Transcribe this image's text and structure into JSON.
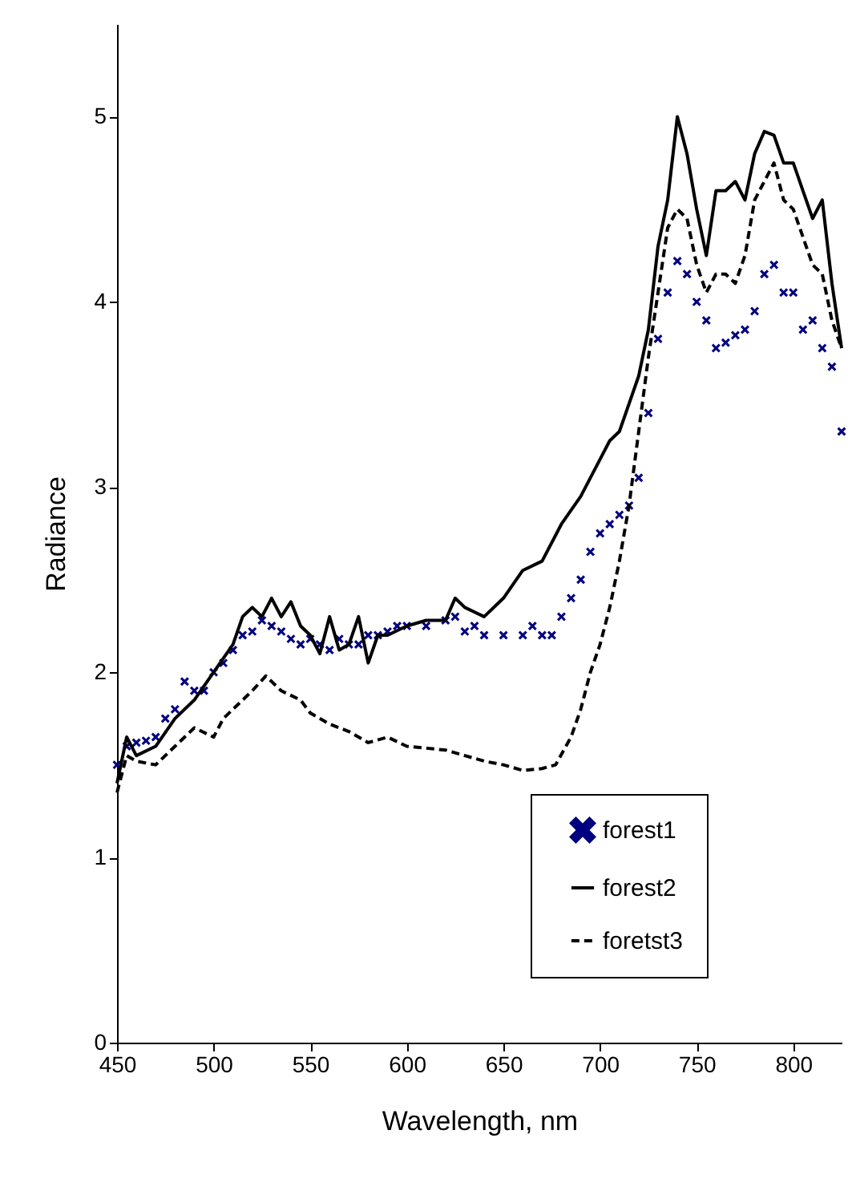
{
  "chart_data": {
    "type": "line",
    "xlabel": "Wavelength, nm",
    "ylabel": "Radiance",
    "xlim": [
      450,
      825
    ],
    "ylim": [
      0,
      5.5
    ],
    "xticks": [
      450,
      500,
      550,
      600,
      650,
      700,
      750,
      800
    ],
    "yticks": [
      0,
      1,
      2,
      3,
      4,
      5
    ],
    "grid": false,
    "legend": "bottom right",
    "series": [
      {
        "name": "forest1",
        "type": "scatter",
        "marker": "cross",
        "color": "#000080",
        "x": [
          450,
          455,
          460,
          465,
          470,
          475,
          480,
          485,
          490,
          495,
          500,
          505,
          510,
          515,
          520,
          525,
          530,
          535,
          540,
          545,
          550,
          555,
          560,
          565,
          570,
          575,
          580,
          585,
          590,
          595,
          600,
          610,
          620,
          625,
          630,
          635,
          640,
          650,
          660,
          665,
          670,
          675,
          680,
          685,
          690,
          695,
          700,
          705,
          710,
          715,
          720,
          725,
          730,
          735,
          740,
          745,
          750,
          755,
          760,
          765,
          770,
          775,
          780,
          785,
          790,
          795,
          800,
          805,
          810,
          815,
          820,
          825
        ],
        "values": [
          1.5,
          1.6,
          1.62,
          1.63,
          1.65,
          1.75,
          1.8,
          1.95,
          1.9,
          1.9,
          2.0,
          2.05,
          2.12,
          2.2,
          2.22,
          2.28,
          2.25,
          2.22,
          2.18,
          2.15,
          2.18,
          2.15,
          2.12,
          2.18,
          2.15,
          2.15,
          2.2,
          2.2,
          2.22,
          2.25,
          2.25,
          2.25,
          2.28,
          2.3,
          2.22,
          2.25,
          2.2,
          2.2,
          2.2,
          2.25,
          2.2,
          2.2,
          2.3,
          2.4,
          2.5,
          2.65,
          2.75,
          2.8,
          2.85,
          2.9,
          3.05,
          3.4,
          3.8,
          4.05,
          4.22,
          4.15,
          4.0,
          3.9,
          3.75,
          3.78,
          3.82,
          3.85,
          3.95,
          4.15,
          4.2,
          4.05,
          4.05,
          3.85,
          3.9,
          3.75,
          3.65,
          3.3
        ]
      },
      {
        "name": "forest2",
        "line_style": "solid",
        "color": "#000000",
        "x": [
          450,
          455,
          460,
          470,
          480,
          490,
          500,
          510,
          515,
          520,
          525,
          530,
          535,
          540,
          545,
          550,
          555,
          560,
          565,
          570,
          575,
          580,
          585,
          590,
          600,
          610,
          620,
          625,
          630,
          640,
          650,
          660,
          670,
          680,
          690,
          700,
          705,
          710,
          715,
          720,
          725,
          730,
          735,
          740,
          745,
          750,
          755,
          760,
          765,
          770,
          775,
          780,
          785,
          790,
          795,
          800,
          805,
          810,
          815,
          820,
          825
        ],
        "values": [
          1.4,
          1.65,
          1.55,
          1.6,
          1.75,
          1.85,
          2.0,
          2.15,
          2.3,
          2.35,
          2.3,
          2.4,
          2.3,
          2.38,
          2.25,
          2.2,
          2.1,
          2.3,
          2.12,
          2.15,
          2.3,
          2.05,
          2.2,
          2.2,
          2.25,
          2.28,
          2.28,
          2.4,
          2.35,
          2.3,
          2.4,
          2.55,
          2.6,
          2.8,
          2.95,
          3.15,
          3.25,
          3.3,
          3.45,
          3.6,
          3.85,
          4.3,
          4.55,
          5.0,
          4.8,
          4.5,
          4.25,
          4.6,
          4.6,
          4.65,
          4.55,
          4.8,
          4.92,
          4.9,
          4.75,
          4.75,
          4.6,
          4.45,
          4.55,
          4.1,
          3.75
        ]
      },
      {
        "name": "foretst3",
        "type": "line",
        "line_style": "dashed",
        "color": "#000000",
        "x": [
          450,
          455,
          460,
          470,
          480,
          490,
          500,
          505,
          510,
          520,
          527,
          535,
          545,
          550,
          560,
          570,
          580,
          590,
          600,
          620,
          630,
          640,
          650,
          660,
          670,
          677,
          685,
          690,
          695,
          700,
          705,
          710,
          715,
          720,
          725,
          730,
          735,
          740,
          745,
          750,
          755,
          760,
          765,
          770,
          775,
          780,
          785,
          790,
          795,
          800,
          805,
          810,
          815,
          820,
          825
        ],
        "values": [
          1.35,
          1.55,
          1.52,
          1.5,
          1.6,
          1.7,
          1.65,
          1.75,
          1.8,
          1.9,
          1.98,
          1.9,
          1.85,
          1.78,
          1.72,
          1.68,
          1.62,
          1.65,
          1.6,
          1.58,
          1.55,
          1.52,
          1.5,
          1.47,
          1.48,
          1.5,
          1.65,
          1.8,
          2.0,
          2.15,
          2.35,
          2.6,
          2.9,
          3.3,
          3.7,
          4.05,
          4.4,
          4.5,
          4.45,
          4.2,
          4.05,
          4.15,
          4.15,
          4.1,
          4.25,
          4.55,
          4.65,
          4.75,
          4.55,
          4.5,
          4.35,
          4.2,
          4.15,
          3.9,
          3.75
        ]
      }
    ]
  }
}
